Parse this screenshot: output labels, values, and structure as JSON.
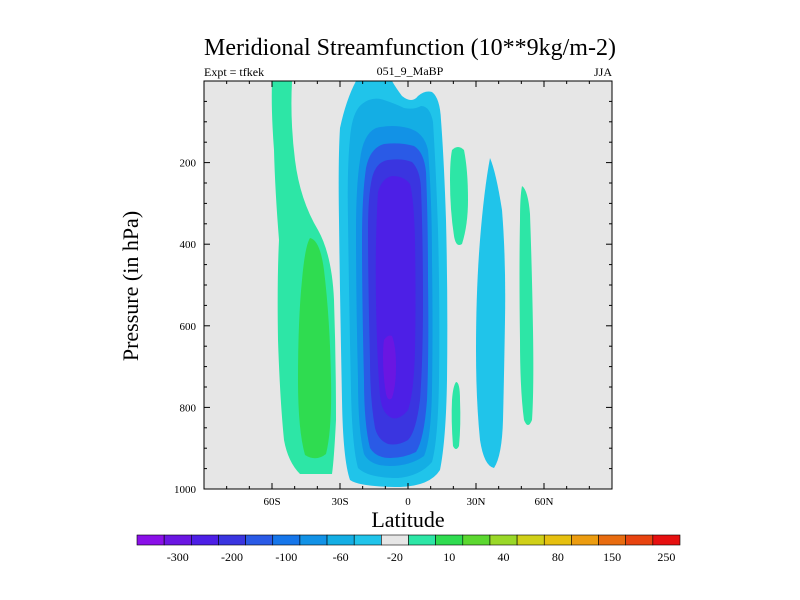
{
  "chart_data": {
    "type": "heatmap",
    "title": "Meridional Streamfunction (10**9kg/m-2)",
    "left_label": "Expt = tfkek",
    "center_label": "051_9_MaBP",
    "right_label": "JJA",
    "xlabel": "Latitude",
    "ylabel": "Pressure (in hPa)",
    "xlim": [
      -90,
      90
    ],
    "ylim": [
      1000,
      0
    ],
    "x_ticks": [
      -60,
      -30,
      0,
      30,
      60
    ],
    "x_tick_labels": [
      "60S",
      "30S",
      "0",
      "30N",
      "60N"
    ],
    "y_ticks": [
      200,
      400,
      600,
      800,
      1000
    ],
    "y_tick_labels": [
      "200",
      "400",
      "600",
      "800",
      "1000"
    ],
    "background_color": "#e6e6e6",
    "colorbar": {
      "colors": [
        "#8a10e8",
        "#6a16e2",
        "#4d1fe6",
        "#3a35e0",
        "#2a5ae6",
        "#1676ea",
        "#1292e6",
        "#14aee4",
        "#20c4ea",
        "#e6e6e6",
        "#2de6a6",
        "#2fdc50",
        "#5cd830",
        "#9ad828",
        "#d0d018",
        "#e6c010",
        "#ec9c10",
        "#e86c10",
        "#e84410",
        "#e61010"
      ],
      "labels": [
        "-300",
        "-200",
        "-100",
        "-60",
        "-20",
        "10",
        "40",
        "80",
        "150",
        "250"
      ],
      "label_positions": [
        0.5,
        2.5,
        4.5,
        6.5,
        8.5,
        10.5,
        12.5,
        14.5,
        16.5,
        18.5
      ]
    },
    "features": [
      {
        "name": "SH streamfunction tongue (10 to 40)",
        "color": "#2de6a6",
        "lat_center": -42,
        "p_top": 0,
        "p_bottom": 960
      },
      {
        "name": "SH core (40 to 80)",
        "color": "#2fdc50",
        "lat_center": -38,
        "p_top": 380,
        "p_bottom": 930
      },
      {
        "name": "Hadley cell outer (-20 to -10)",
        "color": "#20c4ea",
        "lat_center": -3,
        "p_top": 0,
        "p_bottom": 990
      },
      {
        "name": "Hadley cell (-60 to -20)",
        "color": "#14aee4",
        "lat_center": -3,
        "p_top": 40,
        "p_bottom": 980
      },
      {
        "name": "Hadley cell (-100 to -60)",
        "color": "#1292e6",
        "lat_center": -3,
        "p_top": 110,
        "p_bottom": 960
      },
      {
        "name": "Hadley cell (-200 to -100)",
        "color": "#2a5ae6",
        "lat_center": -3,
        "p_top": 150,
        "p_bottom": 940
      },
      {
        "name": "Hadley cell (-300 to -200)",
        "color": "#3a35e0",
        "lat_center": -3,
        "p_top": 190,
        "p_bottom": 900
      },
      {
        "name": "Hadley core (< -300)",
        "color": "#4d1fe6",
        "lat_center": -5,
        "p_top": 230,
        "p_bottom": 860
      },
      {
        "name": "Minimum",
        "color": "#6a16e2",
        "lat_center": -8,
        "p_top": 640,
        "p_bottom": 780
      },
      {
        "name": "NH positive band",
        "color": "#2de6a6",
        "lat_center": 22,
        "p_top": 200,
        "p_bottom": 400
      },
      {
        "name": "NH positive band lower",
        "color": "#2de6a6",
        "lat_center": 22,
        "p_top": 730,
        "p_bottom": 900
      },
      {
        "name": "NH negative cell",
        "color": "#20c4ea",
        "lat_center": 38,
        "p_top": 190,
        "p_bottom": 950
      },
      {
        "name": "NH midlatitude positive band",
        "color": "#2de6a6",
        "lat_center": 54,
        "p_top": 220,
        "p_bottom": 840
      }
    ]
  }
}
